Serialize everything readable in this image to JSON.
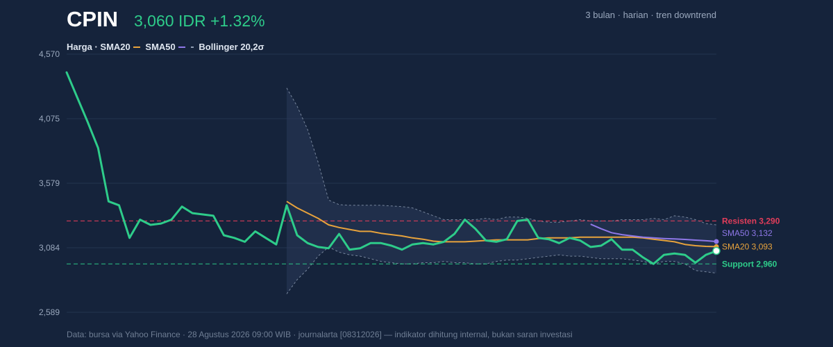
{
  "header": {
    "ticker": "CPIN",
    "price_change": "3,060 IDR +1.32%",
    "meta": "3 bulan · harian · tren downtrend"
  },
  "legend": {
    "harga": "Harga ·",
    "sma20": "SMA20",
    "sma50": "SMA50",
    "bollinger": "Bollinger 20,2σ"
  },
  "footer": "Data: bursa via Yahoo Finance · 28 Agustus 2026 09:00 WIB · journalarta [08312026] — indikator dihitung internal, bukan saran investasi",
  "colors": {
    "background": "#15233b",
    "price": "#2ecc8a",
    "sma20": "#e8a33c",
    "sma50": "#8f78e8",
    "band": "#8f9db3",
    "resistance": "#e23d5a",
    "support": "#2ecc8a",
    "grid": "#24344f",
    "tick": "#9aa8bd"
  },
  "chart_data": {
    "type": "line",
    "ylim": [
      2589,
      4570
    ],
    "yticks": [
      "4,570",
      "4,075",
      "3,579",
      "3,084",
      "2,589"
    ],
    "grid": true,
    "series": [
      {
        "name": "Harga",
        "values": [
          4430,
          4240,
          4050,
          3850,
          3440,
          3410,
          3160,
          3300,
          3260,
          3270,
          3300,
          3400,
          3350,
          3340,
          3330,
          3180,
          3160,
          3130,
          3210,
          3160,
          3110,
          3410,
          3180,
          3120,
          3090,
          3080,
          3190,
          3070,
          3080,
          3120,
          3120,
          3100,
          3070,
          3110,
          3120,
          3110,
          3130,
          3190,
          3300,
          3230,
          3140,
          3130,
          3150,
          3290,
          3300,
          3160,
          3150,
          3120,
          3160,
          3140,
          3090,
          3100,
          3150,
          3070,
          3070,
          3010,
          2960,
          3030,
          3040,
          3030,
          2970,
          3030,
          3060
        ]
      },
      {
        "name": "SMA20",
        "values": [
          null,
          null,
          null,
          null,
          null,
          null,
          null,
          null,
          null,
          null,
          null,
          null,
          null,
          null,
          null,
          null,
          null,
          null,
          null,
          null,
          null,
          3440,
          3390,
          3350,
          3310,
          3260,
          3240,
          3225,
          3210,
          3210,
          3195,
          3185,
          3175,
          3160,
          3150,
          3135,
          3130,
          3130,
          3130,
          3135,
          3140,
          3145,
          3145,
          3145,
          3145,
          3155,
          3160,
          3160,
          3160,
          3165,
          3165,
          3165,
          3165,
          3165,
          3165,
          3160,
          3150,
          3140,
          3130,
          3110,
          3100,
          3095,
          3093
        ]
      },
      {
        "name": "SMA50",
        "values": [
          null,
          null,
          null,
          null,
          null,
          null,
          null,
          null,
          null,
          null,
          null,
          null,
          null,
          null,
          null,
          null,
          null,
          null,
          null,
          null,
          null,
          null,
          null,
          null,
          null,
          null,
          null,
          null,
          null,
          null,
          null,
          null,
          null,
          null,
          null,
          null,
          null,
          null,
          null,
          null,
          null,
          null,
          null,
          null,
          null,
          null,
          null,
          null,
          null,
          null,
          3265,
          3230,
          3200,
          3185,
          3175,
          3165,
          3160,
          3155,
          3152,
          3148,
          3143,
          3138,
          3132
        ]
      },
      {
        "name": "Bollinger 20,2σ",
        "upper": [
          null,
          null,
          null,
          null,
          null,
          null,
          null,
          null,
          null,
          null,
          null,
          null,
          null,
          null,
          null,
          null,
          null,
          null,
          null,
          null,
          null,
          4310,
          4170,
          3990,
          3740,
          3450,
          3415,
          3410,
          3410,
          3410,
          3410,
          3405,
          3400,
          3390,
          3360,
          3330,
          3300,
          3300,
          3300,
          3300,
          3310,
          3300,
          3320,
          3320,
          3310,
          3290,
          3280,
          3280,
          3290,
          3300,
          3290,
          3290,
          3290,
          3300,
          3300,
          3300,
          3310,
          3300,
          3330,
          3320,
          3300,
          3270,
          3260
        ],
        "lower": [
          null,
          null,
          null,
          null,
          null,
          null,
          null,
          null,
          null,
          null,
          null,
          null,
          null,
          null,
          null,
          null,
          null,
          null,
          null,
          null,
          null,
          2730,
          2840,
          2920,
          3020,
          3090,
          3050,
          3030,
          3020,
          3000,
          2980,
          2970,
          2960,
          2960,
          2970,
          2970,
          2980,
          2970,
          2970,
          2960,
          2960,
          2980,
          2990,
          2990,
          3000,
          3010,
          3020,
          3030,
          3020,
          3020,
          3010,
          3000,
          3000,
          3000,
          2990,
          2980,
          2960,
          2980,
          2980,
          2960,
          2910,
          2900,
          2890
        ]
      }
    ],
    "resistance": {
      "value": 3290,
      "label": "Resisten 3,290"
    },
    "support": {
      "value": 2960,
      "label": "Support 2,960"
    },
    "end_labels": {
      "sma50": "SMA50 3,132",
      "sma20": "SMA20 3,093"
    }
  }
}
